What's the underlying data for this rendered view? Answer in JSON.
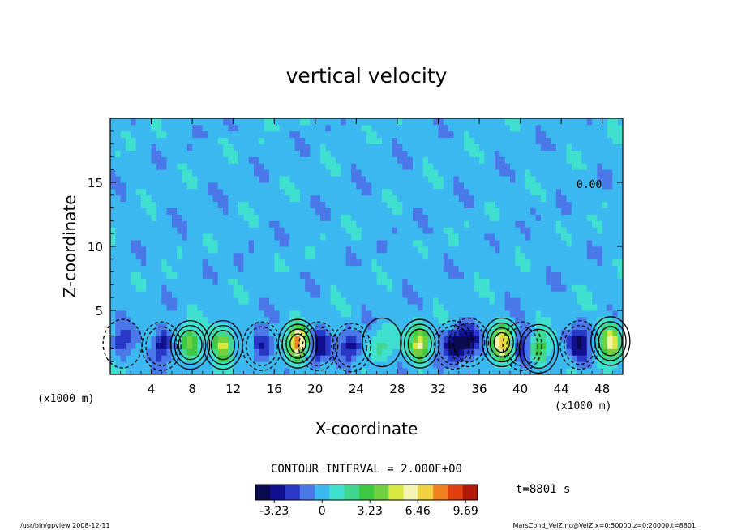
{
  "chart_data": {
    "type": "heatmap",
    "title": "vertical velocity",
    "xlabel": "X-coordinate",
    "ylabel": "Z-coordinate",
    "x_unit_left": "(x1000 m)",
    "x_unit_right": "(x1000 m)",
    "xlim": [
      0,
      50
    ],
    "ylim": [
      0,
      20
    ],
    "x_ticks": [
      4,
      8,
      12,
      16,
      20,
      24,
      28,
      32,
      36,
      40,
      44,
      48
    ],
    "y_ticks": [
      5,
      10,
      15
    ],
    "contour_interval_text": "CONTOUR INTERVAL = 2.000E+00",
    "contour_label": "0.00",
    "time_text": "t=8801 s",
    "colorbar": {
      "min": -4.5,
      "max": 10.5,
      "tick_values": [
        -3.23,
        0,
        3.23,
        6.46,
        9.69
      ],
      "tick_labels": [
        "-3.23",
        "0",
        "3.23",
        "6.46",
        "9.69"
      ],
      "colors": [
        "#0a0a50",
        "#101090",
        "#2a38c8",
        "#4a78e8",
        "#3cb8f0",
        "#40e0d0",
        "#40d890",
        "#3cc840",
        "#70d040",
        "#d8e840",
        "#f4f4b0",
        "#f0d040",
        "#f08020",
        "#e04010",
        "#b01808"
      ]
    },
    "features": [
      {
        "x": 1.2,
        "z": 2.4,
        "w": -2.0
      },
      {
        "x": 5.0,
        "z": 2.2,
        "w": -3.8
      },
      {
        "x": 7.8,
        "z": 2.3,
        "w": 4.5
      },
      {
        "x": 11.0,
        "z": 2.3,
        "w": 5.5
      },
      {
        "x": 14.8,
        "z": 2.2,
        "w": -3.0
      },
      {
        "x": 18.3,
        "z": 2.4,
        "w": 8.0
      },
      {
        "x": 20.3,
        "z": 2.2,
        "w": -3.5
      },
      {
        "x": 23.5,
        "z": 2.1,
        "w": -3.0
      },
      {
        "x": 26.5,
        "z": 2.5,
        "w": 2.0
      },
      {
        "x": 30.2,
        "z": 2.4,
        "w": 6.0
      },
      {
        "x": 33.5,
        "z": 2.3,
        "w": -4.0
      },
      {
        "x": 35.0,
        "z": 2.5,
        "w": -3.5
      },
      {
        "x": 38.2,
        "z": 2.5,
        "w": 7.0
      },
      {
        "x": 40.2,
        "z": 2.2,
        "w": -3.0
      },
      {
        "x": 41.8,
        "z": 2.0,
        "w": 4.0
      },
      {
        "x": 45.8,
        "z": 2.3,
        "w": -3.5
      },
      {
        "x": 48.8,
        "z": 2.6,
        "w": 6.0
      }
    ]
  },
  "footer": {
    "program": "/usr/bin/gpview   2008-12-11",
    "source": "MarsCond_VelZ.nc@VelZ,x=0:50000,z=0:20000,t=8801"
  }
}
